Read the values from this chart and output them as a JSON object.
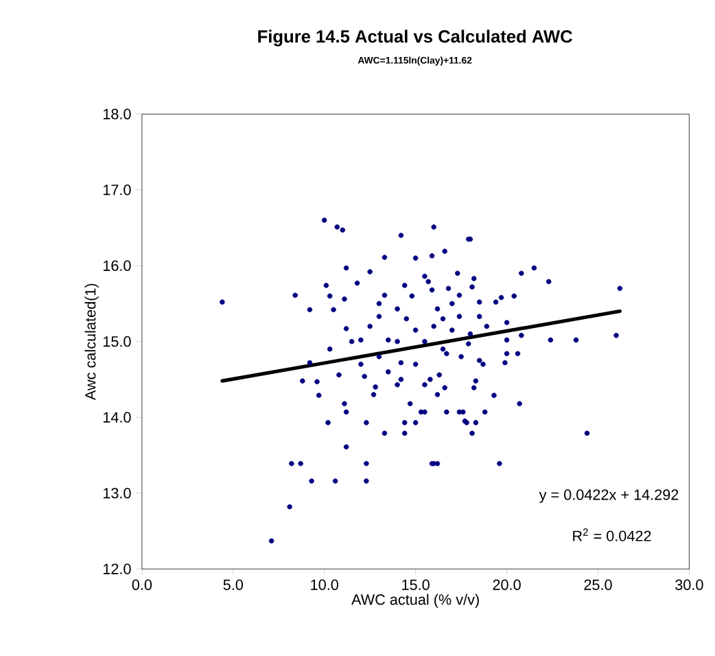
{
  "chart_data": {
    "type": "scatter",
    "title": "Figure 14.5  Actual vs Calculated AWC",
    "subtitle": "AWC=1.115ln(Clay)+11.62",
    "xlabel": "AWC actual (% v/v)",
    "ylabel": "Awc calculated(1)",
    "xlim": [
      0,
      30
    ],
    "ylim": [
      12,
      18
    ],
    "xticks": [
      {
        "value": 0,
        "label": "0.0"
      },
      {
        "value": 5,
        "label": "5.0"
      },
      {
        "value": 10,
        "label": "10.0"
      },
      {
        "value": 15,
        "label": "15.0"
      },
      {
        "value": 20,
        "label": "20.0"
      },
      {
        "value": 25,
        "label": "25.0"
      },
      {
        "value": 30,
        "label": "30.0"
      }
    ],
    "yticks": [
      {
        "value": 12,
        "label": "12.0"
      },
      {
        "value": 13,
        "label": "13.0"
      },
      {
        "value": 14,
        "label": "14.0"
      },
      {
        "value": 15,
        "label": "15.0"
      },
      {
        "value": 16,
        "label": "16.0"
      },
      {
        "value": 17,
        "label": "17.0"
      },
      {
        "value": 18,
        "label": "18.0"
      }
    ],
    "series": [
      {
        "marker": "circle",
        "color": "#000080",
        "x": [
          10.0,
          10.7,
          11.0,
          14.2,
          16.0,
          17.9,
          4.4,
          8.4,
          9.2,
          10.1,
          10.3,
          10.5,
          11.2,
          11.1,
          13.3,
          15.0,
          15.9,
          16.6,
          12.5,
          11.8,
          11.2,
          10.3,
          9.2,
          8.8,
          9.6,
          9.7,
          10.8,
          11.1,
          11.2,
          10.2,
          12.3,
          13.3,
          14.4,
          14.4,
          15.0,
          11.2,
          8.2,
          8.7,
          12.3,
          15.9,
          16.2,
          9.3,
          10.6,
          12.3,
          8.1,
          7.1,
          12.0,
          12.2,
          13.0,
          13.5,
          14.2,
          15.0,
          15.5,
          16.2,
          16.7,
          17.4,
          12.7,
          14.0,
          14.7,
          15.3,
          16.7,
          16.6,
          13.3,
          14.0,
          14.4,
          15.5,
          15.9,
          17.6,
          17.7,
          18.0,
          17.3,
          18.2,
          18.1,
          20.8,
          21.5,
          22.3,
          26.2,
          19.4,
          19.7,
          20.4,
          18.5,
          20.0,
          20.8,
          22.4,
          23.8,
          26.0,
          20.0,
          20.0,
          20.6,
          19.9,
          18.7,
          18.5,
          20.7,
          19.3,
          18.2,
          18.3,
          24.4,
          19.6,
          16.0,
          18.8,
          17.4,
          17.8,
          18.3,
          18.1,
          15.5,
          16.2,
          16.3,
          17.4,
          17.0,
          18.5,
          18.9,
          17.9,
          16.5,
          15.7,
          13.0,
          14.0,
          15.0,
          16.0,
          12.5,
          13.5,
          14.5,
          15.5,
          16.5,
          17.5,
          12.0,
          13.0,
          14.2,
          15.8,
          17.0,
          11.5,
          12.8,
          18.0,
          14.8,
          16.8
        ],
        "values": [
          16.6,
          16.51,
          16.47,
          16.4,
          16.51,
          16.35,
          15.52,
          15.61,
          15.42,
          15.74,
          15.6,
          15.42,
          15.97,
          15.56,
          16.11,
          16.1,
          16.13,
          16.19,
          15.92,
          15.77,
          15.17,
          14.9,
          14.72,
          14.48,
          14.47,
          14.29,
          14.56,
          14.18,
          14.07,
          13.93,
          13.93,
          13.79,
          13.79,
          13.93,
          13.93,
          13.61,
          13.39,
          13.39,
          13.39,
          13.39,
          13.39,
          13.16,
          13.16,
          13.16,
          12.82,
          12.37,
          15.02,
          14.54,
          15.33,
          15.02,
          14.72,
          15.15,
          14.43,
          15.43,
          14.84,
          15.61,
          14.3,
          14.43,
          14.18,
          14.07,
          14.07,
          14.39,
          15.61,
          15.43,
          15.74,
          15.86,
          15.68,
          14.07,
          13.95,
          16.35,
          15.9,
          15.83,
          15.72,
          15.9,
          15.97,
          15.79,
          15.7,
          15.52,
          15.58,
          15.6,
          15.52,
          15.25,
          15.08,
          15.02,
          15.02,
          15.08,
          15.02,
          14.84,
          14.84,
          14.72,
          14.7,
          14.75,
          14.18,
          14.29,
          14.39,
          14.48,
          13.79,
          13.39,
          13.39,
          14.07,
          14.07,
          13.93,
          13.93,
          13.79,
          14.07,
          14.3,
          14.56,
          15.33,
          15.15,
          15.33,
          15.2,
          14.97,
          14.9,
          15.79,
          14.8,
          15.0,
          14.7,
          15.2,
          15.2,
          14.6,
          15.3,
          15.0,
          15.3,
          14.8,
          14.7,
          15.5,
          14.5,
          14.5,
          15.5,
          15.0,
          14.4,
          15.1,
          15.6,
          15.7
        ]
      },
      {
        "type": "line",
        "marker": "none",
        "color": "#000000",
        "x": [
          4.4,
          26.2
        ],
        "values": [
          14.48,
          15.4
        ]
      }
    ],
    "annotations": [
      "y = 0.0422x + 14.292",
      "R$^{2}$ = 0.0422"
    ]
  }
}
